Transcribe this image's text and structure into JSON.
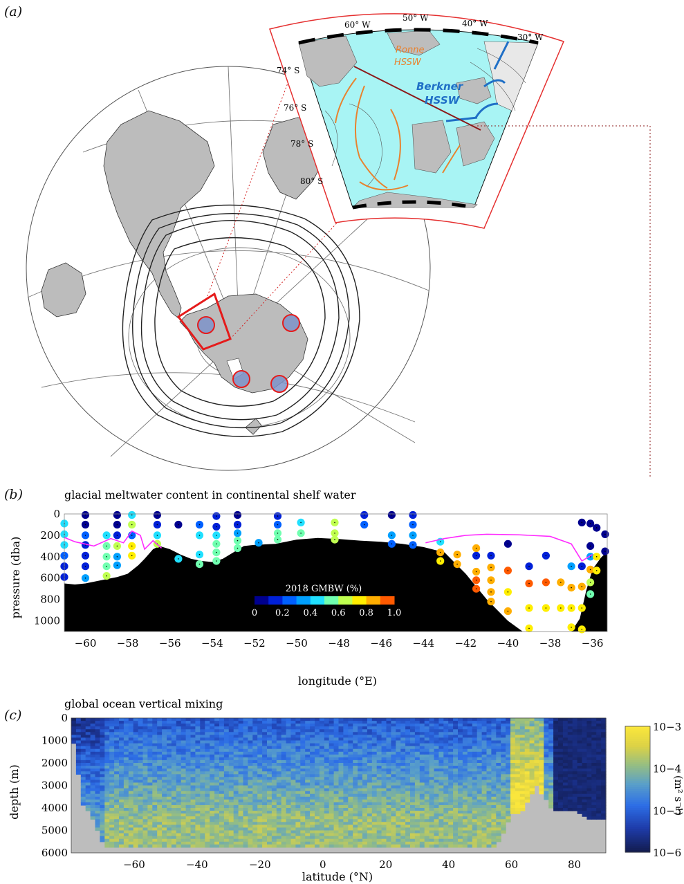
{
  "panel_a": {
    "label": "(a)",
    "inset_lon_labels": [
      "60° W",
      "50° W",
      "40° W",
      "30° W"
    ],
    "inset_lat_labels": [
      "74° S",
      "76° S",
      "78° S",
      "80° S"
    ],
    "ronne_label_1": "Ronne",
    "ronne_label_2": "HSSW",
    "berkner_label_1": "Berkner",
    "berkner_label_2": "HSSW",
    "colors": {
      "shelf": "#a8f4f4",
      "land": "#bdbdbd",
      "frame": "#e53030",
      "ronne": "#e8822e",
      "berkner": "#1f6fc6"
    }
  },
  "panel_b": {
    "label": "(b)",
    "title": "glacial meltwater content in continental shelf water",
    "ylabel": "pressure (dba)",
    "xlabel": "longitude (°E)",
    "colorbar_title": "2018 GMBW (%)",
    "colorbar_ticks": [
      "0",
      "0.2",
      "0.4",
      "0.6",
      "0.8",
      "1.0"
    ],
    "colorbar_colors": [
      "#00008f",
      "#0020d8",
      "#0060ff",
      "#00a0ff",
      "#20e0ff",
      "#70ffb0",
      "#c0ff50",
      "#ffee00",
      "#ffae00",
      "#ff5a00"
    ]
  },
  "panel_c": {
    "label": "(c)",
    "title": "global ocean vertical mixing",
    "ylabel": "depth (m)",
    "xlabel": "latitude (°N)",
    "colorbar_ticks": [
      "10−3",
      "10−4",
      "10−5",
      "10−6"
    ],
    "colorbar_unit": "(m² s⁻¹)"
  },
  "chart_data": [
    {
      "type": "scatter",
      "title": "glacial meltwater content in continental shelf water",
      "xlabel": "longitude (°E)",
      "ylabel": "pressure (dba)",
      "xlim": [
        -61,
        -35.3
      ],
      "ylim": [
        1100,
        0
      ],
      "x_ticks": [
        -60,
        -58,
        -56,
        -54,
        -52,
        -50,
        -48,
        -46,
        -44,
        -42,
        -40,
        -38,
        -36
      ],
      "y_ticks": [
        0,
        200,
        400,
        600,
        800,
        1000
      ],
      "colorbar": {
        "label": "2018 GMBW (%)",
        "range": [
          0,
          1.0
        ]
      },
      "seafloor": [
        [
          -61,
          650
        ],
        [
          -60.5,
          660
        ],
        [
          -60,
          650
        ],
        [
          -59.5,
          630
        ],
        [
          -59,
          610
        ],
        [
          -58.5,
          590
        ],
        [
          -58,
          560
        ],
        [
          -57.5,
          480
        ],
        [
          -57.2,
          420
        ],
        [
          -56.8,
          330
        ],
        [
          -56.5,
          300
        ],
        [
          -56,
          330
        ],
        [
          -55.5,
          380
        ],
        [
          -55,
          420
        ],
        [
          -54.5,
          440
        ],
        [
          -54,
          450
        ],
        [
          -53.5,
          420
        ],
        [
          -53,
          360
        ],
        [
          -52.5,
          300
        ],
        [
          -52,
          290
        ],
        [
          -51,
          280
        ],
        [
          -50,
          240
        ],
        [
          -49,
          225
        ],
        [
          -48,
          235
        ],
        [
          -47,
          250
        ],
        [
          -46,
          260
        ],
        [
          -45,
          280
        ],
        [
          -44,
          310
        ],
        [
          -43,
          360
        ],
        [
          -42.5,
          460
        ],
        [
          -42,
          560
        ],
        [
          -41.5,
          680
        ],
        [
          -41,
          800
        ],
        [
          -40.5,
          900
        ],
        [
          -40,
          1000
        ],
        [
          -39.3,
          1100
        ],
        [
          -37,
          1100
        ],
        [
          -36.6,
          980
        ],
        [
          -36.3,
          720
        ],
        [
          -36,
          520
        ],
        [
          -35.6,
          410
        ],
        [
          -35.3,
          350
        ]
      ],
      "points": [
        {
          "x": -61,
          "y": 90,
          "v": 0.4
        },
        {
          "x": -61,
          "y": 190,
          "v": 0.45
        },
        {
          "x": -61,
          "y": 290,
          "v": 0.4
        },
        {
          "x": -61,
          "y": 390,
          "v": 0.2
        },
        {
          "x": -61,
          "y": 490,
          "v": 0.1
        },
        {
          "x": -61,
          "y": 590,
          "v": 0.15
        },
        {
          "x": -60,
          "y": 10,
          "v": 0.05
        },
        {
          "x": -60,
          "y": 100,
          "v": 0.05
        },
        {
          "x": -60,
          "y": 200,
          "v": 0.25
        },
        {
          "x": -60,
          "y": 290,
          "v": 0.1
        },
        {
          "x": -60,
          "y": 390,
          "v": 0.1
        },
        {
          "x": -60,
          "y": 490,
          "v": 0.1
        },
        {
          "x": -60,
          "y": 600,
          "v": 0.3
        },
        {
          "x": -59,
          "y": 200,
          "v": 0.45
        },
        {
          "x": -59,
          "y": 300,
          "v": 0.55
        },
        {
          "x": -59,
          "y": 400,
          "v": 0.5
        },
        {
          "x": -59,
          "y": 490,
          "v": 0.55
        },
        {
          "x": -59,
          "y": 580,
          "v": 0.6
        },
        {
          "x": -58.5,
          "y": 10,
          "v": 0.05
        },
        {
          "x": -58.5,
          "y": 100,
          "v": 0.05
        },
        {
          "x": -58.5,
          "y": 200,
          "v": 0.1
        },
        {
          "x": -58.5,
          "y": 300,
          "v": 0.6
        },
        {
          "x": -58.5,
          "y": 400,
          "v": 0.35
        },
        {
          "x": -58.5,
          "y": 480,
          "v": 0.35
        },
        {
          "x": -57.8,
          "y": 10,
          "v": 0.45
        },
        {
          "x": -57.8,
          "y": 100,
          "v": 0.6
        },
        {
          "x": -57.8,
          "y": 200,
          "v": 0.2
        },
        {
          "x": -57.8,
          "y": 300,
          "v": 0.75
        },
        {
          "x": -57.8,
          "y": 390,
          "v": 0.75
        },
        {
          "x": -56.6,
          "y": 10,
          "v": 0.05
        },
        {
          "x": -56.6,
          "y": 100,
          "v": 0.15
        },
        {
          "x": -56.6,
          "y": 200,
          "v": 0.4
        },
        {
          "x": -56.6,
          "y": 280,
          "v": 0.6
        },
        {
          "x": -55.6,
          "y": 100,
          "v": 0.05
        },
        {
          "x": -55.6,
          "y": 420,
          "v": 0.45
        },
        {
          "x": -54.6,
          "y": 100,
          "v": 0.25
        },
        {
          "x": -54.6,
          "y": 200,
          "v": 0.4
        },
        {
          "x": -54.6,
          "y": 380,
          "v": 0.45
        },
        {
          "x": -54.6,
          "y": 470,
          "v": 0.55
        },
        {
          "x": -53.8,
          "y": 20,
          "v": 0.1
        },
        {
          "x": -53.8,
          "y": 120,
          "v": 0.15
        },
        {
          "x": -53.8,
          "y": 200,
          "v": 0.4
        },
        {
          "x": -53.8,
          "y": 280,
          "v": 0.5
        },
        {
          "x": -53.8,
          "y": 360,
          "v": 0.5
        },
        {
          "x": -53.8,
          "y": 440,
          "v": 0.55
        },
        {
          "x": -52.8,
          "y": 10,
          "v": 0.05
        },
        {
          "x": -52.8,
          "y": 100,
          "v": 0.1
        },
        {
          "x": -52.8,
          "y": 180,
          "v": 0.35
        },
        {
          "x": -52.8,
          "y": 250,
          "v": 0.5
        },
        {
          "x": -52.8,
          "y": 320,
          "v": 0.5
        },
        {
          "x": -51.8,
          "y": 270,
          "v": 0.35
        },
        {
          "x": -50.9,
          "y": 20,
          "v": 0.1
        },
        {
          "x": -50.9,
          "y": 100,
          "v": 0.25
        },
        {
          "x": -50.9,
          "y": 180,
          "v": 0.5
        },
        {
          "x": -50.9,
          "y": 240,
          "v": 0.5
        },
        {
          "x": -49.8,
          "y": 80,
          "v": 0.45
        },
        {
          "x": -49.8,
          "y": 180,
          "v": 0.55
        },
        {
          "x": -48.2,
          "y": 80,
          "v": 0.6
        },
        {
          "x": -48.2,
          "y": 180,
          "v": 0.6
        },
        {
          "x": -48.2,
          "y": 240,
          "v": 0.6
        },
        {
          "x": -46.8,
          "y": 10,
          "v": 0.1
        },
        {
          "x": -46.8,
          "y": 100,
          "v": 0.2
        },
        {
          "x": -45.5,
          "y": 10,
          "v": 0.05
        },
        {
          "x": -45.5,
          "y": 200,
          "v": 0.35
        },
        {
          "x": -45.5,
          "y": 280,
          "v": 0.2
        },
        {
          "x": -44.5,
          "y": 10,
          "v": 0.1
        },
        {
          "x": -44.5,
          "y": 100,
          "v": 0.25
        },
        {
          "x": -44.5,
          "y": 200,
          "v": 0.35
        },
        {
          "x": -44.5,
          "y": 290,
          "v": 0.2
        },
        {
          "x": -43.2,
          "y": 260,
          "v": 0.4
        },
        {
          "x": -43.2,
          "y": 360,
          "v": 0.8
        },
        {
          "x": -43.2,
          "y": 440,
          "v": 0.7
        },
        {
          "x": -42.4,
          "y": 380,
          "v": 0.8
        },
        {
          "x": -42.4,
          "y": 470,
          "v": 0.8
        },
        {
          "x": -41.5,
          "y": 320,
          "v": 0.85
        },
        {
          "x": -41.5,
          "y": 390,
          "v": 0.15
        },
        {
          "x": -41.5,
          "y": 540,
          "v": 0.88
        },
        {
          "x": -41.5,
          "y": 620,
          "v": 0.9
        },
        {
          "x": -41.5,
          "y": 700,
          "v": 0.95
        },
        {
          "x": -40.8,
          "y": 390,
          "v": 0.15
        },
        {
          "x": -40.8,
          "y": 500,
          "v": 0.85
        },
        {
          "x": -40.8,
          "y": 620,
          "v": 0.85
        },
        {
          "x": -40.8,
          "y": 730,
          "v": 0.85
        },
        {
          "x": -40.8,
          "y": 820,
          "v": 0.8
        },
        {
          "x": -40,
          "y": 280,
          "v": 0.05
        },
        {
          "x": -40,
          "y": 530,
          "v": 0.95
        },
        {
          "x": -40,
          "y": 730,
          "v": 0.7
        },
        {
          "x": -40,
          "y": 910,
          "v": 0.85
        },
        {
          "x": -39,
          "y": 490,
          "v": 0.1
        },
        {
          "x": -39,
          "y": 650,
          "v": 0.92
        },
        {
          "x": -39,
          "y": 880,
          "v": 0.75
        },
        {
          "x": -39,
          "y": 1070,
          "v": 0.75
        },
        {
          "x": -38.2,
          "y": 390,
          "v": 0.1
        },
        {
          "x": -38.2,
          "y": 640,
          "v": 0.9
        },
        {
          "x": -38.2,
          "y": 880,
          "v": 0.75
        },
        {
          "x": -37.5,
          "y": 640,
          "v": 0.88
        },
        {
          "x": -37.5,
          "y": 880,
          "v": 0.75
        },
        {
          "x": -37,
          "y": 490,
          "v": 0.3
        },
        {
          "x": -37,
          "y": 690,
          "v": 0.85
        },
        {
          "x": -37,
          "y": 880,
          "v": 0.75
        },
        {
          "x": -37,
          "y": 1060,
          "v": 0.75
        },
        {
          "x": -36.5,
          "y": 80,
          "v": 0.05
        },
        {
          "x": -36.5,
          "y": 490,
          "v": 0.15
        },
        {
          "x": -36.5,
          "y": 680,
          "v": 0.85
        },
        {
          "x": -36.5,
          "y": 880,
          "v": 0.75
        },
        {
          "x": -36.5,
          "y": 1080,
          "v": 0.75
        },
        {
          "x": -36.1,
          "y": 90,
          "v": 0.05
        },
        {
          "x": -36.1,
          "y": 300,
          "v": 0.05
        },
        {
          "x": -36.1,
          "y": 400,
          "v": 0.3
        },
        {
          "x": -36.1,
          "y": 520,
          "v": 0.85
        },
        {
          "x": -36.1,
          "y": 640,
          "v": 0.6
        },
        {
          "x": -36.1,
          "y": 750,
          "v": 0.55
        },
        {
          "x": -35.8,
          "y": 130,
          "v": 0.05
        },
        {
          "x": -35.8,
          "y": 400,
          "v": 0.75
        },
        {
          "x": -35.8,
          "y": 530,
          "v": 0.75
        },
        {
          "x": -35.4,
          "y": 190,
          "v": 0.05
        },
        {
          "x": -35.4,
          "y": 350,
          "v": 0.05
        }
      ]
    },
    {
      "type": "heatmap",
      "title": "global ocean vertical mixing",
      "xlabel": "latitude (°N)",
      "ylabel": "depth (m)",
      "xlim": [
        -80,
        90
      ],
      "ylim": [
        6000,
        0
      ],
      "x_ticks": [
        -60,
        -40,
        -20,
        0,
        20,
        40,
        60,
        80
      ],
      "y_ticks": [
        0,
        1000,
        2000,
        3000,
        4000,
        5000,
        6000
      ],
      "colorbar": {
        "label": "(m² s⁻¹)",
        "scale": "log",
        "range": [
          1e-06,
          0.001
        ]
      }
    }
  ]
}
